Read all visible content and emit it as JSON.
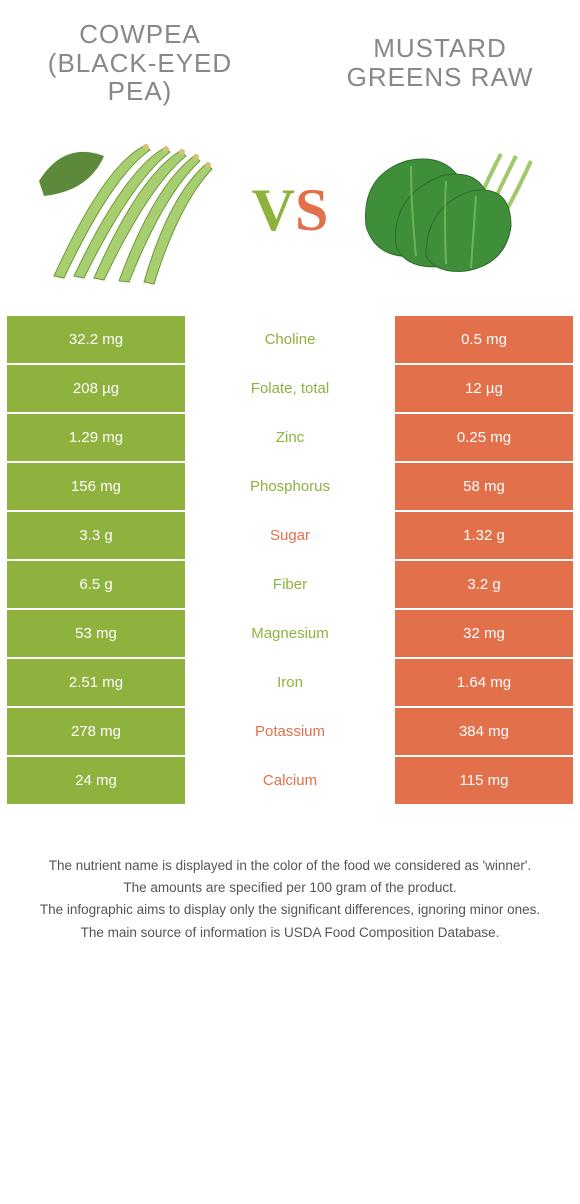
{
  "colors": {
    "green": "#8fb23f",
    "orange": "#e2704a",
    "title_gray": "#888888",
    "footer_gray": "#555555",
    "bg": "#ffffff"
  },
  "food_left": {
    "title": "COWPEA (BLACK-EYED PEA)"
  },
  "food_right": {
    "title": "MUSTARD GREENS RAW"
  },
  "vs": {
    "v": "V",
    "s": "S"
  },
  "rows": [
    {
      "left": "32.2 mg",
      "label": "Choline",
      "right": "0.5 mg",
      "winner": "green"
    },
    {
      "left": "208 µg",
      "label": "Folate, total",
      "right": "12 µg",
      "winner": "green"
    },
    {
      "left": "1.29 mg",
      "label": "Zinc",
      "right": "0.25 mg",
      "winner": "green"
    },
    {
      "left": "156 mg",
      "label": "Phosphorus",
      "right": "58 mg",
      "winner": "green"
    },
    {
      "left": "3.3 g",
      "label": "Sugar",
      "right": "1.32 g",
      "winner": "orange"
    },
    {
      "left": "6.5 g",
      "label": "Fiber",
      "right": "3.2 g",
      "winner": "green"
    },
    {
      "left": "53 mg",
      "label": "Magnesium",
      "right": "32 mg",
      "winner": "green"
    },
    {
      "left": "2.51 mg",
      "label": "Iron",
      "right": "1.64 mg",
      "winner": "green"
    },
    {
      "left": "278 mg",
      "label": "Potassium",
      "right": "384 mg",
      "winner": "orange"
    },
    {
      "left": "24 mg",
      "label": "Calcium",
      "right": "115 mg",
      "winner": "orange"
    }
  ],
  "footer": [
    "The nutrient name is displayed in the color of the food we considered as 'winner'.",
    "The amounts are specified per 100 gram of the product.",
    "The infographic aims to display only the significant differences, ignoring minor ones.",
    "The main source of information is USDA Food Composition Database."
  ]
}
